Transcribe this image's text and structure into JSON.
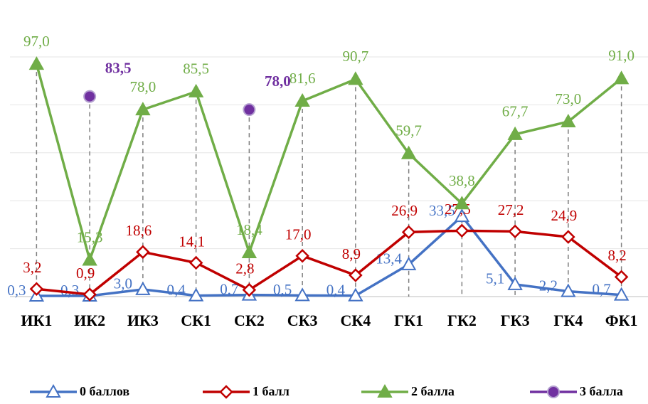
{
  "chart_data": {
    "type": "line",
    "categories": [
      "ИК1",
      "ИК2",
      "ИК3",
      "СК1",
      "СК2",
      "СК3",
      "СК4",
      "ГК1",
      "ГК2",
      "ГК3",
      "ГК4",
      "ФК1"
    ],
    "ylim": [
      0,
      100
    ],
    "yticks": [
      0,
      20,
      40,
      60,
      80,
      100
    ],
    "grid": true,
    "legend": "bottom",
    "series": [
      {
        "name": "0 баллов",
        "color": "#4472c4",
        "marker": "triangle-open",
        "values": [
          0.3,
          0.3,
          3.0,
          0.4,
          0.7,
          0.5,
          0.4,
          13.4,
          33.5,
          5.1,
          2.2,
          0.7
        ],
        "value_labels": [
          "0,3",
          "0,3",
          "3,0",
          "0,4",
          "0,7",
          "0,5",
          "0,4",
          "13,4",
          "33,5",
          "5,1",
          "2,2",
          "0,7"
        ]
      },
      {
        "name": "1 балл",
        "color": "#c00000",
        "marker": "diamond-open",
        "values": [
          3.2,
          0.9,
          18.6,
          14.1,
          2.8,
          17.0,
          8.9,
          26.9,
          27.5,
          27.2,
          24.9,
          8.2
        ],
        "value_labels": [
          "3,2",
          "0,9",
          "18,6",
          "14,1",
          "2,8",
          "17,0",
          "8,9",
          "26,9",
          "27,5",
          "27,2",
          "24,9",
          "8,2"
        ]
      },
      {
        "name": "2 балла",
        "color": "#70ad47",
        "marker": "triangle",
        "values": [
          97.0,
          15.3,
          78.0,
          85.5,
          18.4,
          81.6,
          90.7,
          59.7,
          38.8,
          67.7,
          73.0,
          91.0
        ],
        "value_labels": [
          "97,0",
          "15,3",
          "78,0",
          "85,5",
          "18,4",
          "81,6",
          "90,7",
          "59,7",
          "38,8",
          "67,7",
          "73,0",
          "91,0"
        ]
      },
      {
        "name": "3 балла",
        "color": "#7030a0",
        "marker": "circle",
        "values": [
          null,
          83.5,
          null,
          null,
          78.0,
          null,
          null,
          null,
          null,
          null,
          null,
          null
        ],
        "value_labels": [
          null,
          "83,5",
          null,
          null,
          "78,0",
          null,
          null,
          null,
          null,
          null,
          null,
          null
        ]
      }
    ]
  }
}
